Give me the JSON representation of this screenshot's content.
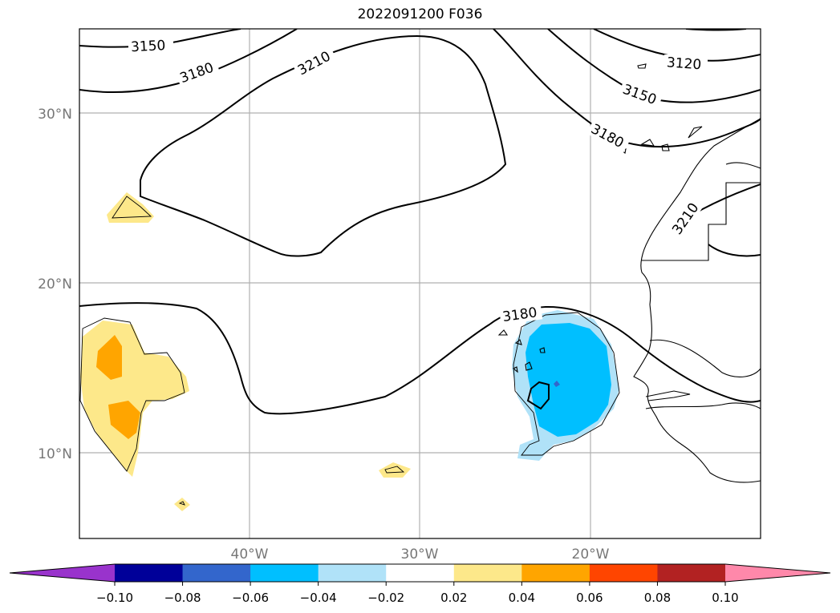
{
  "title": "2022091200 F036",
  "axes": {
    "lat_labels": [
      "30°N",
      "20°N",
      "10°N"
    ],
    "lon_labels": [
      "40°W",
      "30°W",
      "20°W"
    ]
  },
  "contour_labels": [
    "3150",
    "3180",
    "3210",
    "3120",
    "3150",
    "3180",
    "3210",
    "3180"
  ],
  "colorbar": {
    "tick_labels": [
      "−0.10",
      "−0.08",
      "−0.06",
      "−0.04",
      "−0.02",
      "0.02",
      "0.04",
      "0.06",
      "0.08",
      "0.10"
    ],
    "colors": [
      "#9933cc",
      "#000099",
      "#3366cc",
      "#00bfff",
      "#b0e2f8",
      "#ffffff",
      "#fde88a",
      "#ffa500",
      "#ff4500",
      "#b22222",
      "#ff88aa"
    ]
  },
  "fill_colors": {
    "yellow": "#fde88a",
    "orange": "#ffa500",
    "light_blue": "#b0e2f8",
    "blue": "#00bfff"
  }
}
